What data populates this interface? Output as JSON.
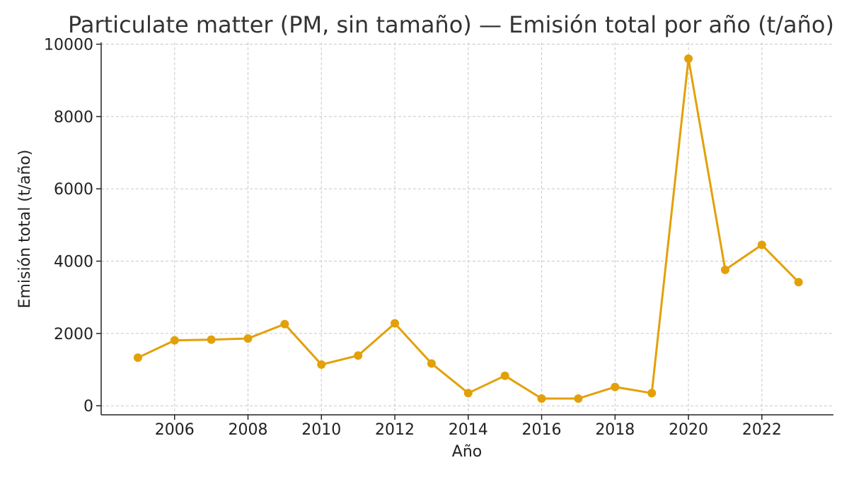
{
  "chart_data": {
    "type": "line",
    "title": "Particulate matter (PM, sin tamaño) — Emisión total por año (t/año)",
    "xlabel": "Año",
    "ylabel": "Emisión total (t/año)",
    "xlim": [
      2004.0,
      2023.95
    ],
    "ylim": [
      -250,
      10050
    ],
    "xticks": [
      2006,
      2008,
      2010,
      2012,
      2014,
      2016,
      2018,
      2020,
      2022
    ],
    "yticks": [
      0,
      2000,
      4000,
      6000,
      8000,
      10000
    ],
    "grid": true,
    "grid_style": "dashed",
    "color": "#E3A008",
    "series": [
      {
        "x": [
          2005,
          2006,
          2007,
          2008,
          2009,
          2010,
          2011,
          2012,
          2013,
          2014,
          2015,
          2016,
          2017,
          2018,
          2019,
          2020,
          2021,
          2022,
          2023
        ],
        "y": [
          1330,
          1810,
          1830,
          1860,
          2260,
          1140,
          1390,
          2280,
          1170,
          350,
          830,
          200,
          200,
          520,
          350,
          9600,
          3760,
          4450,
          3420
        ]
      }
    ]
  }
}
